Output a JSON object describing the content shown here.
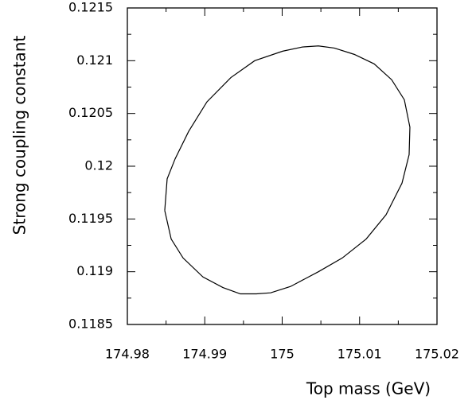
{
  "chart_data": {
    "type": "line",
    "x_label": "Top mass (GeV)",
    "y_label": "Strong coupling constant",
    "xlim": [
      174.98,
      175.02
    ],
    "xticks": [
      174.98,
      174.99,
      175,
      175.01,
      175.02
    ],
    "ylim": [
      0.1185,
      0.1215
    ],
    "yticks": [
      0.1185,
      0.119,
      0.1195,
      0.12,
      0.1205,
      0.121,
      0.1215
    ],
    "series": [
      {
        "color": "#000000",
        "x": [
          174.98483,
          174.98514,
          174.98617,
          174.98792,
          174.99028,
          174.99337,
          174.99645,
          175.00005,
          175.00262,
          175.00468,
          175.00674,
          175.00931,
          175.01188,
          175.01414,
          175.01578,
          175.0165,
          175.0164,
          175.01548,
          175.01342,
          175.01085,
          175.00776,
          175.00468,
          175.00108,
          174.99851,
          174.99666,
          174.9946,
          174.99234,
          174.98977,
          174.9872,
          174.98566,
          174.98483
        ],
        "values": [
          0.11958,
          0.11988,
          0.12007,
          0.12033,
          0.12061,
          0.12084,
          0.121,
          0.12109,
          0.12113,
          0.12114,
          0.12112,
          0.12106,
          0.12097,
          0.12082,
          0.12063,
          0.12037,
          0.12011,
          0.11984,
          0.11954,
          0.11931,
          0.11913,
          0.119,
          0.11886,
          0.1188,
          0.11879,
          0.11879,
          0.11885,
          0.11895,
          0.11913,
          0.11931,
          0.11958
        ]
      }
    ]
  }
}
